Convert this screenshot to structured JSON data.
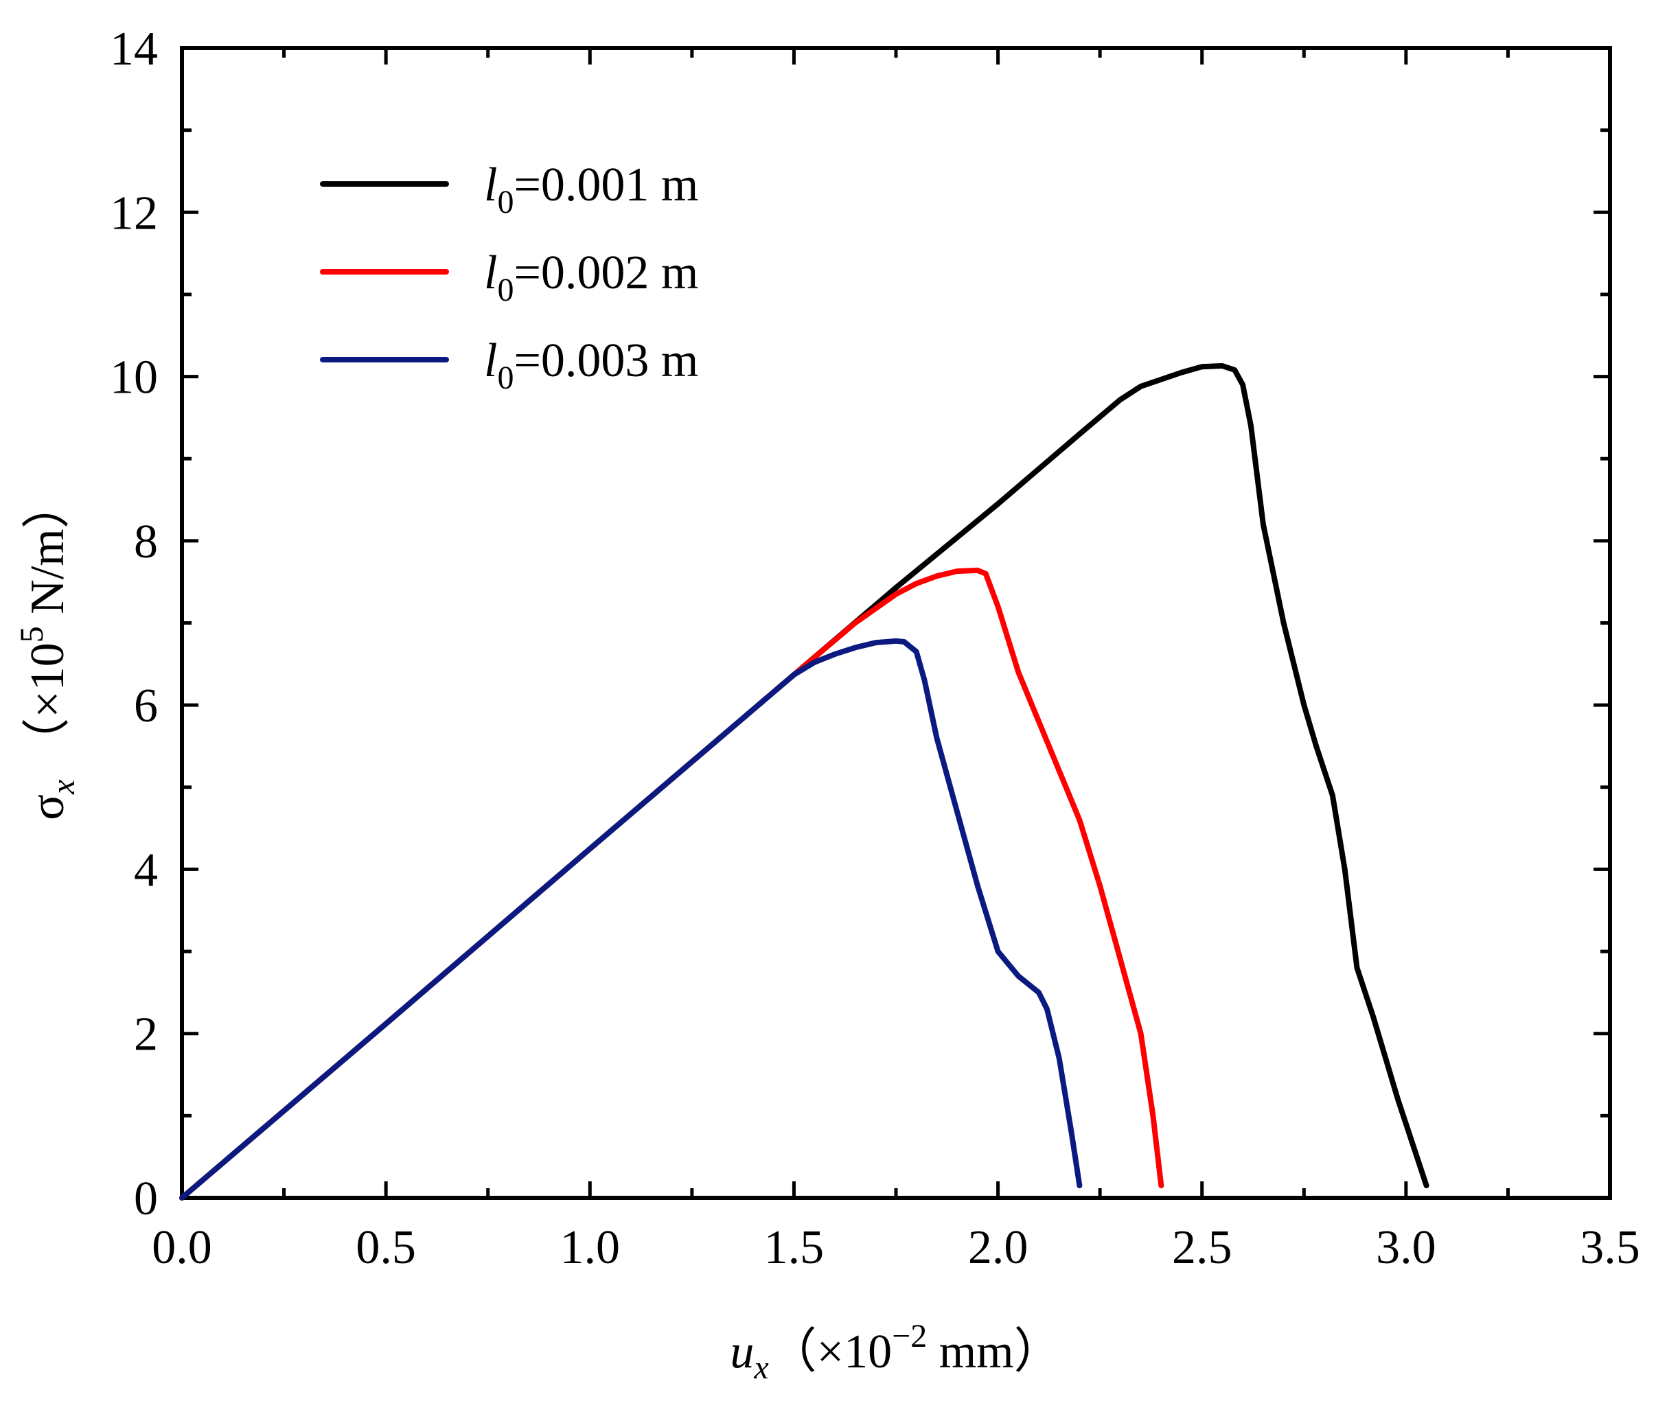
{
  "chart_data": {
    "type": "line",
    "title": "",
    "xlabel": {
      "symbol": "u",
      "subscript": "x",
      "unit_prefix": "（×10",
      "exponent": "−2",
      "unit_suffix": " mm）"
    },
    "ylabel": {
      "symbol": "σ",
      "subscript": "x",
      "unit_prefix": "（×10",
      "exponent": "5",
      "unit_suffix": " N/m）"
    },
    "xlim": [
      0.0,
      3.5
    ],
    "ylim": [
      0,
      14
    ],
    "xticks": [
      "0.0",
      "0.5",
      "1.0",
      "1.5",
      "2.0",
      "2.5",
      "3.0",
      "3.5"
    ],
    "yticks": [
      "0",
      "2",
      "4",
      "6",
      "8",
      "10",
      "12",
      "14"
    ],
    "grid": false,
    "legend_position": "top-left",
    "series": [
      {
        "name": "l0=0.001 m",
        "label_symbol": "l",
        "label_subscript": "0",
        "label_rest": "=0.001 m",
        "color": "#000000",
        "x": [
          0.0,
          0.5,
          1.0,
          1.5,
          1.75,
          2.0,
          2.2,
          2.3,
          2.35,
          2.45,
          2.5,
          2.55,
          2.58,
          2.6,
          2.62,
          2.65,
          2.7,
          2.75,
          2.78,
          2.82,
          2.85,
          2.88,
          2.92,
          2.98,
          3.05
        ],
        "y": [
          0.0,
          2.12,
          4.25,
          6.37,
          7.43,
          8.45,
          9.3,
          9.72,
          9.88,
          10.05,
          10.12,
          10.13,
          10.08,
          9.9,
          9.4,
          8.2,
          7.0,
          6.0,
          5.5,
          4.9,
          4.0,
          2.8,
          2.2,
          1.2,
          0.15
        ]
      },
      {
        "name": "l0=0.002 m",
        "label_symbol": "l",
        "label_subscript": "0",
        "label_rest": "=0.002 m",
        "color": "#ff0000",
        "x": [
          0.0,
          0.5,
          1.0,
          1.5,
          1.65,
          1.75,
          1.8,
          1.85,
          1.9,
          1.95,
          1.97,
          2.0,
          2.05,
          2.1,
          2.2,
          2.25,
          2.3,
          2.35,
          2.38,
          2.4
        ],
        "y": [
          0.0,
          2.12,
          4.25,
          6.37,
          7.0,
          7.35,
          7.48,
          7.57,
          7.63,
          7.64,
          7.6,
          7.2,
          6.4,
          5.8,
          4.6,
          3.8,
          2.9,
          2.0,
          1.0,
          0.15
        ]
      },
      {
        "name": "l0=0.003 m",
        "label_symbol": "l",
        "label_subscript": "0",
        "label_rest": "=0.003 m",
        "color": "#0a1a80",
        "x": [
          0.0,
          0.5,
          1.0,
          1.5,
          1.55,
          1.6,
          1.65,
          1.7,
          1.75,
          1.77,
          1.8,
          1.82,
          1.85,
          1.9,
          1.95,
          2.0,
          2.05,
          2.1,
          2.12,
          2.15,
          2.18,
          2.2
        ],
        "y": [
          0.0,
          2.12,
          4.25,
          6.37,
          6.52,
          6.62,
          6.7,
          6.76,
          6.78,
          6.77,
          6.65,
          6.3,
          5.6,
          4.7,
          3.8,
          3.0,
          2.7,
          2.5,
          2.3,
          1.7,
          0.8,
          0.15
        ]
      }
    ]
  }
}
